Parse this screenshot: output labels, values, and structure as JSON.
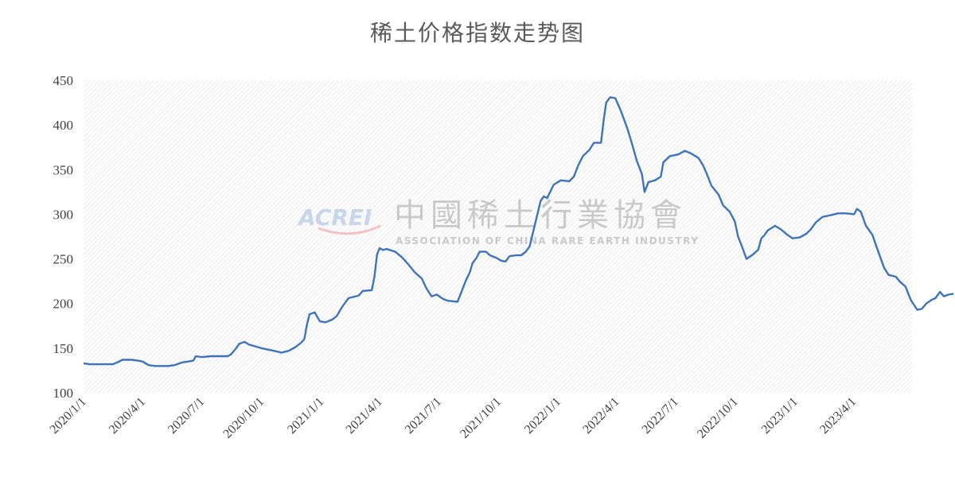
{
  "chart_data": {
    "type": "line",
    "title": "稀土价格指数走势图",
    "xlabel": "",
    "ylabel": "",
    "ylim": [
      100,
      450
    ],
    "yticks": [
      100,
      150,
      200,
      250,
      300,
      350,
      400,
      450
    ],
    "xlim": [
      "2020-01-01",
      "2023-06-30"
    ],
    "xticks": [
      "2020/1/1",
      "2020/4/1",
      "2020/7/1",
      "2020/10/1",
      "2021/1/1",
      "2021/4/1",
      "2021/7/1",
      "2021/10/1",
      "2022/1/1",
      "2022/4/1",
      "2022/7/1",
      "2022/10/1",
      "2023/1/1",
      "2023/4/1"
    ],
    "grid": "diagonal hatch background",
    "legend": "none",
    "line_color": "#3f73b8",
    "watermark": {
      "logo": "ACREI",
      "cn": "中國稀土行業協會",
      "en": "ASSOCIATION OF CHINA RARE EARTH INDUSTRY"
    },
    "series": [
      {
        "points": [
          [
            "2020-01-01",
            133
          ],
          [
            "2020-01-10",
            132
          ],
          [
            "2020-02-15",
            132
          ],
          [
            "2020-02-22",
            134
          ],
          [
            "2020-03-01",
            137
          ],
          [
            "2020-03-15",
            137
          ],
          [
            "2020-03-25",
            136
          ],
          [
            "2020-04-01",
            135
          ],
          [
            "2020-04-10",
            131
          ],
          [
            "2020-04-20",
            130
          ],
          [
            "2020-05-10",
            130
          ],
          [
            "2020-05-20",
            131
          ],
          [
            "2020-06-01",
            134
          ],
          [
            "2020-06-10",
            135
          ],
          [
            "2020-06-18",
            136
          ],
          [
            "2020-06-22",
            141
          ],
          [
            "2020-07-01",
            140
          ],
          [
            "2020-07-15",
            141
          ],
          [
            "2020-08-10",
            141
          ],
          [
            "2020-08-15",
            143
          ],
          [
            "2020-08-22",
            149
          ],
          [
            "2020-08-28",
            155
          ],
          [
            "2020-09-05",
            157
          ],
          [
            "2020-09-12",
            154
          ],
          [
            "2020-10-01",
            150
          ],
          [
            "2020-10-20",
            147
          ],
          [
            "2020-11-01",
            145
          ],
          [
            "2020-11-12",
            147
          ],
          [
            "2020-11-22",
            151
          ],
          [
            "2020-12-01",
            156
          ],
          [
            "2020-12-06",
            160
          ],
          [
            "2020-12-10",
            176
          ],
          [
            "2020-12-14",
            188
          ],
          [
            "2020-12-22",
            190
          ],
          [
            "2020-12-30",
            180
          ],
          [
            "2021-01-08",
            179
          ],
          [
            "2021-01-18",
            182
          ],
          [
            "2021-01-25",
            186
          ],
          [
            "2021-02-02",
            196
          ],
          [
            "2021-02-12",
            206
          ],
          [
            "2021-02-28",
            209
          ],
          [
            "2021-03-06",
            214
          ],
          [
            "2021-03-20",
            215
          ],
          [
            "2021-03-24",
            230
          ],
          [
            "2021-03-28",
            255
          ],
          [
            "2021-04-01",
            262
          ],
          [
            "2021-04-06",
            260
          ],
          [
            "2021-04-12",
            261
          ],
          [
            "2021-04-25",
            258
          ],
          [
            "2021-05-05",
            252
          ],
          [
            "2021-05-15",
            244
          ],
          [
            "2021-05-25",
            235
          ],
          [
            "2021-06-05",
            228
          ],
          [
            "2021-06-12",
            217
          ],
          [
            "2021-06-20",
            208
          ],
          [
            "2021-06-28",
            210
          ],
          [
            "2021-07-08",
            205
          ],
          [
            "2021-07-15",
            203
          ],
          [
            "2021-07-30",
            202
          ],
          [
            "2021-08-05",
            213
          ],
          [
            "2021-08-12",
            226
          ],
          [
            "2021-08-18",
            235
          ],
          [
            "2021-08-22",
            245
          ],
          [
            "2021-08-28",
            251
          ],
          [
            "2021-09-02",
            258
          ],
          [
            "2021-09-12",
            258
          ],
          [
            "2021-09-18",
            254
          ],
          [
            "2021-09-28",
            251
          ],
          [
            "2021-10-05",
            248
          ],
          [
            "2021-10-12",
            247
          ],
          [
            "2021-10-18",
            253
          ],
          [
            "2021-10-28",
            254
          ],
          [
            "2021-11-05",
            254
          ],
          [
            "2021-11-12",
            258
          ],
          [
            "2021-11-18",
            264
          ],
          [
            "2021-11-25",
            285
          ],
          [
            "2021-11-30",
            300
          ],
          [
            "2021-12-05",
            315
          ],
          [
            "2021-12-10",
            320
          ],
          [
            "2021-12-15",
            318
          ],
          [
            "2021-12-25",
            333
          ],
          [
            "2022-01-05",
            338
          ],
          [
            "2022-01-18",
            337
          ],
          [
            "2022-01-25",
            342
          ],
          [
            "2022-02-01",
            355
          ],
          [
            "2022-02-08",
            365
          ],
          [
            "2022-02-18",
            372
          ],
          [
            "2022-02-25",
            380
          ],
          [
            "2022-03-08",
            380
          ],
          [
            "2022-03-12",
            405
          ],
          [
            "2022-03-16",
            425
          ],
          [
            "2022-03-22",
            431
          ],
          [
            "2022-03-30",
            430
          ],
          [
            "2022-04-08",
            415
          ],
          [
            "2022-04-18",
            395
          ],
          [
            "2022-04-25",
            378
          ],
          [
            "2022-05-02",
            360
          ],
          [
            "2022-05-10",
            345
          ],
          [
            "2022-05-14",
            325
          ],
          [
            "2022-05-20",
            336
          ],
          [
            "2022-05-30",
            338
          ],
          [
            "2022-06-08",
            342
          ],
          [
            "2022-06-12",
            358
          ],
          [
            "2022-06-22",
            365
          ],
          [
            "2022-07-05",
            367
          ],
          [
            "2022-07-15",
            371
          ],
          [
            "2022-07-25",
            368
          ],
          [
            "2022-08-05",
            363
          ],
          [
            "2022-08-12",
            355
          ],
          [
            "2022-08-18",
            345
          ],
          [
            "2022-08-25",
            332
          ],
          [
            "2022-09-05",
            322
          ],
          [
            "2022-09-12",
            310
          ],
          [
            "2022-09-22",
            303
          ],
          [
            "2022-09-30",
            292
          ],
          [
            "2022-10-05",
            275
          ],
          [
            "2022-10-12",
            262
          ],
          [
            "2022-10-18",
            250
          ],
          [
            "2022-10-28",
            255
          ],
          [
            "2022-11-05",
            260
          ],
          [
            "2022-11-10",
            273
          ],
          [
            "2022-11-14",
            276
          ],
          [
            "2022-11-20",
            282
          ],
          [
            "2022-12-01",
            287
          ],
          [
            "2022-12-10",
            283
          ],
          [
            "2022-12-20",
            277
          ],
          [
            "2022-12-28",
            273
          ],
          [
            "2023-01-08",
            274
          ],
          [
            "2023-01-18",
            278
          ],
          [
            "2023-01-25",
            283
          ],
          [
            "2023-02-02",
            291
          ],
          [
            "2023-02-12",
            297
          ],
          [
            "2023-02-25",
            299
          ],
          [
            "2023-03-08",
            301
          ],
          [
            "2023-03-20",
            301
          ],
          [
            "2023-04-02",
            300
          ],
          [
            "2023-04-06",
            306
          ],
          [
            "2023-04-12",
            303
          ],
          [
            "2023-04-20",
            287
          ],
          [
            "2023-04-30",
            277
          ],
          [
            "2023-05-08",
            260
          ],
          [
            "2023-05-18",
            240
          ],
          [
            "2023-05-25",
            232
          ],
          [
            "2023-06-05",
            230
          ],
          [
            "2023-06-12",
            224
          ],
          [
            "2023-06-20",
            219
          ],
          [
            "2023-06-28",
            204
          ],
          [
            "2023-07-08",
            193
          ],
          [
            "2023-07-15",
            194
          ],
          [
            "2023-07-22",
            200
          ],
          [
            "2023-07-30",
            204
          ],
          [
            "2023-08-05",
            206
          ],
          [
            "2023-08-12",
            213
          ],
          [
            "2023-08-18",
            208
          ],
          [
            "2023-08-25",
            210
          ],
          [
            "2023-09-02",
            211
          ]
        ]
      }
    ]
  }
}
